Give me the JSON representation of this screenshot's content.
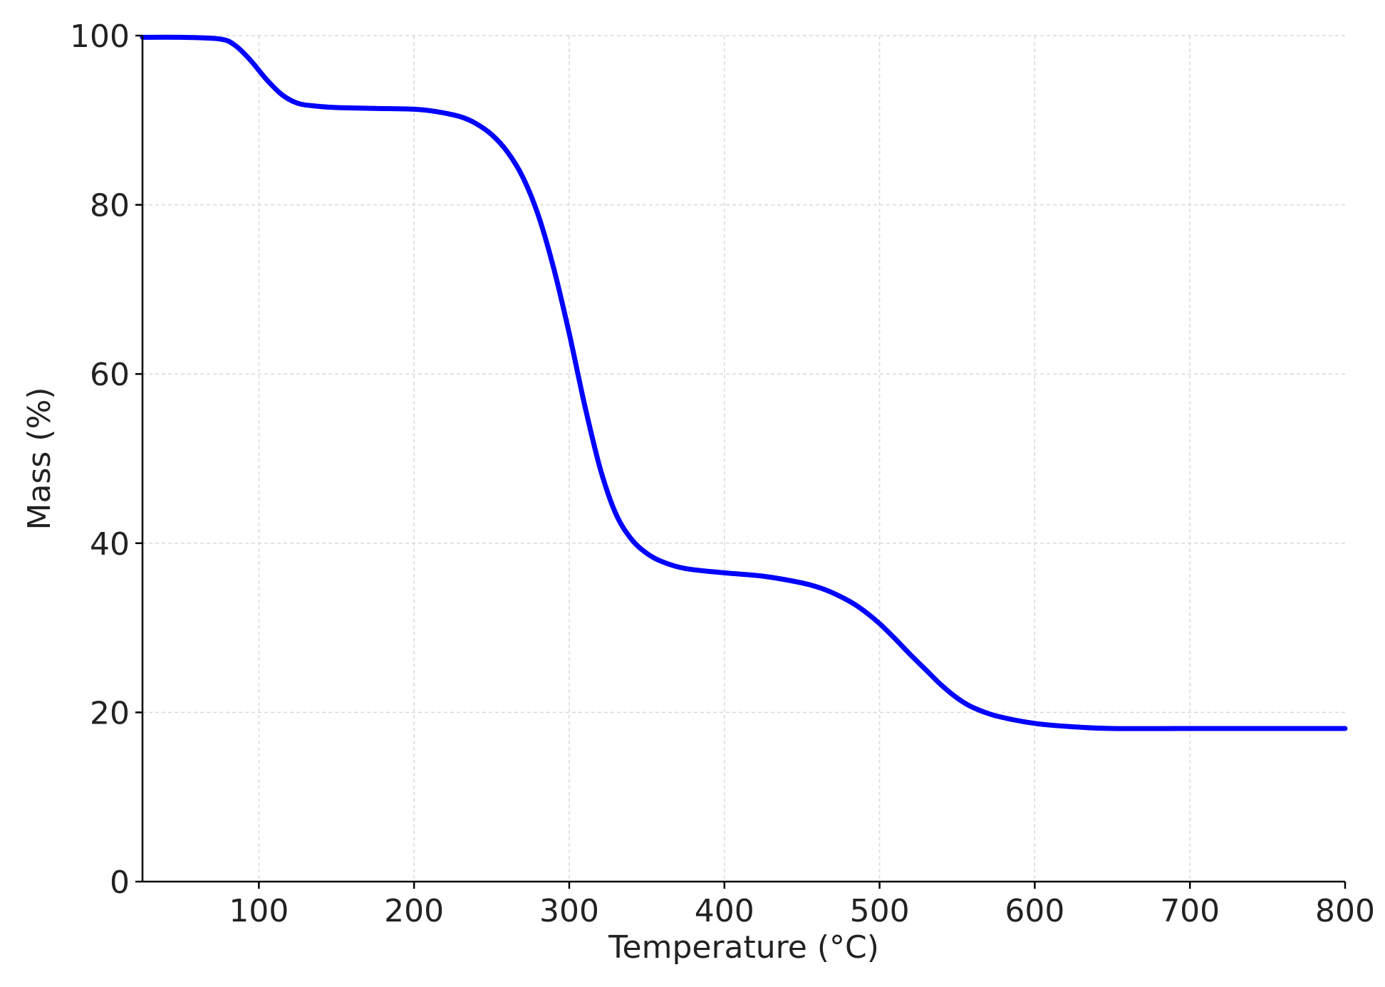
{
  "chart_data": {
    "type": "line",
    "title": "",
    "xlabel": "Temperature (°C)",
    "ylabel": "Mass (%)",
    "xlim": [
      25,
      800
    ],
    "ylim": [
      0,
      100
    ],
    "xticks": [
      100,
      200,
      300,
      400,
      500,
      600,
      700,
      800
    ],
    "yticks": [
      0,
      20,
      40,
      60,
      80,
      100
    ],
    "grid": true,
    "legend": "none",
    "series": [
      {
        "color": "#0000ff",
        "x": [
          25,
          50,
          75,
          85,
          95,
          105,
          115,
          125,
          135,
          150,
          175,
          200,
          215,
          230,
          240,
          250,
          260,
          270,
          280,
          290,
          300,
          310,
          320,
          330,
          340,
          350,
          360,
          375,
          400,
          425,
          450,
          465,
          480,
          490,
          500,
          510,
          520,
          530,
          540,
          550,
          560,
          575,
          600,
          625,
          650,
          700,
          750,
          800
        ],
        "y": [
          99.8,
          99.8,
          99.6,
          98.8,
          97.0,
          94.8,
          93.0,
          92.0,
          91.7,
          91.5,
          91.4,
          91.3,
          91.0,
          90.4,
          89.6,
          88.3,
          86.3,
          83.3,
          78.8,
          72.5,
          64.8,
          56.3,
          48.8,
          43.5,
          40.5,
          38.8,
          37.8,
          37.0,
          36.5,
          36.1,
          35.3,
          34.5,
          33.2,
          32.0,
          30.5,
          28.7,
          26.8,
          25.0,
          23.2,
          21.7,
          20.6,
          19.6,
          18.7,
          18.3,
          18.1,
          18.1,
          18.1,
          18.1
        ]
      }
    ]
  }
}
